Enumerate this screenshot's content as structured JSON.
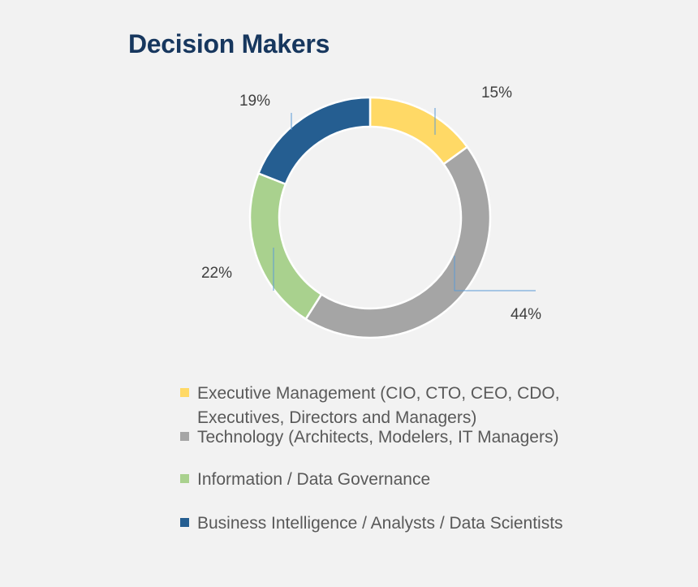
{
  "chart_data": {
    "type": "pie",
    "title": "Decision Makers",
    "donut": true,
    "legend_position": "bottom",
    "slices": [
      {
        "label": "Executive Management (CIO, CTO, CEO, CDO, Executives, Directors and Managers)",
        "value": 15,
        "display": "15%",
        "color": "#ffd966"
      },
      {
        "label": "Technology (Architects, Modelers, IT Managers)",
        "value": 44,
        "display": "44%",
        "color": "#a5a5a5"
      },
      {
        "label": "Information / Data Governance",
        "value": 22,
        "display": "22%",
        "color": "#a9d18e"
      },
      {
        "label": "Business Intelligence / Analysts / Data Scientists",
        "value": 19,
        "display": "19%",
        "color": "#255e91"
      }
    ]
  }
}
